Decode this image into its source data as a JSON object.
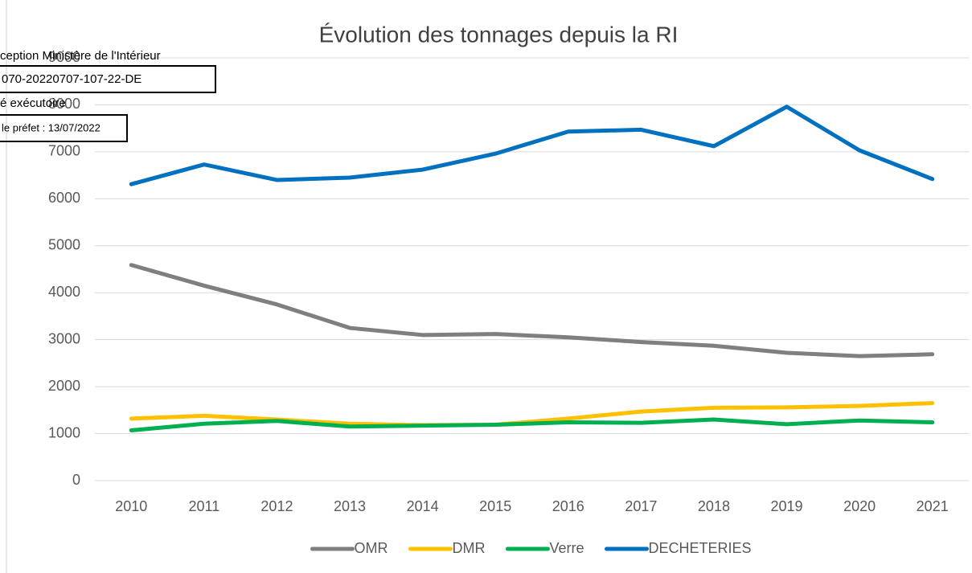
{
  "chart_data": {
    "type": "line",
    "title": "Évolution des tonnages depuis la RI",
    "categories": [
      "2010",
      "2011",
      "2012",
      "2013",
      "2014",
      "2015",
      "2016",
      "2017",
      "2018",
      "2019",
      "2020",
      "2021"
    ],
    "series": [
      {
        "name": "OMR",
        "color": "#7f7f7f",
        "values": [
          4590,
          4150,
          3750,
          3250,
          3100,
          3120,
          3050,
          2950,
          2870,
          2720,
          2650,
          2690
        ]
      },
      {
        "name": "DMR",
        "color": "#ffc000",
        "values": [
          1320,
          1380,
          1300,
          1210,
          1180,
          1190,
          1320,
          1470,
          1550,
          1560,
          1590,
          1650
        ]
      },
      {
        "name": "Verre",
        "color": "#00b050",
        "values": [
          1070,
          1210,
          1270,
          1150,
          1170,
          1190,
          1240,
          1230,
          1300,
          1200,
          1280,
          1240
        ]
      },
      {
        "name": "DECHETERIES",
        "color": "#0070c0",
        "values": [
          6310,
          6730,
          6400,
          6450,
          6620,
          6960,
          7430,
          7470,
          7120,
          7960,
          7030,
          6420
        ]
      }
    ],
    "ylim": [
      0,
      9000
    ],
    "yticks": [
      0,
      1000,
      2000,
      3000,
      4000,
      5000,
      6000,
      7000,
      8000,
      9000
    ],
    "grid": true,
    "legend": "bottom",
    "annotations": [
      "ception Ministère de l'Intérieur",
      "070-20220707-107-22-DE",
      "é exécutoire",
      "le préfet : 13/07/2022"
    ]
  }
}
